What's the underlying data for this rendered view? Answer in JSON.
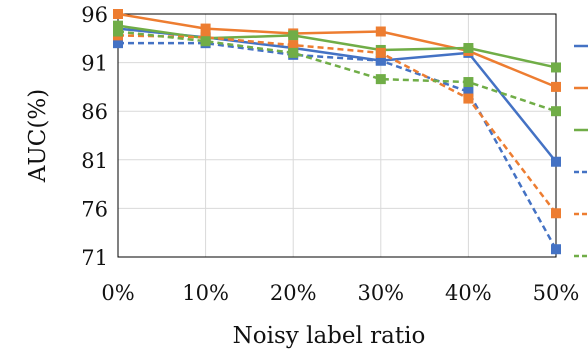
{
  "chart_data": {
    "type": "line",
    "title": "",
    "xlabel": "Noisy label ratio",
    "ylabel": "AUC(%)",
    "categories": [
      "0%",
      "10%",
      "20%",
      "30%",
      "40%",
      "50%"
    ],
    "y_ticks": [
      "96",
      "91",
      "86",
      "81",
      "76",
      "71"
    ],
    "ylim": [
      71,
      96
    ],
    "grid": true,
    "legend": "right (cropped)",
    "series": [
      {
        "color": "#4472c4",
        "style": "solid",
        "values": [
          94.5,
          93.6,
          92.5,
          91.2,
          92.0,
          80.8
        ]
      },
      {
        "color": "#ed7d31",
        "style": "solid",
        "values": [
          96.0,
          94.5,
          94.0,
          94.2,
          92.2,
          88.5
        ]
      },
      {
        "color": "#70ad47",
        "style": "solid",
        "values": [
          94.8,
          93.5,
          93.8,
          92.3,
          92.5,
          90.5
        ]
      },
      {
        "color": "#4472c4",
        "style": "dashed",
        "values": [
          93.0,
          93.0,
          91.8,
          91.2,
          88.0,
          71.8
        ]
      },
      {
        "color": "#ed7d31",
        "style": "dashed",
        "values": [
          93.8,
          93.6,
          92.8,
          92.0,
          87.3,
          75.5
        ]
      },
      {
        "color": "#70ad47",
        "style": "dashed",
        "values": [
          94.2,
          93.2,
          92.0,
          89.3,
          89.0,
          86.0
        ]
      }
    ]
  }
}
